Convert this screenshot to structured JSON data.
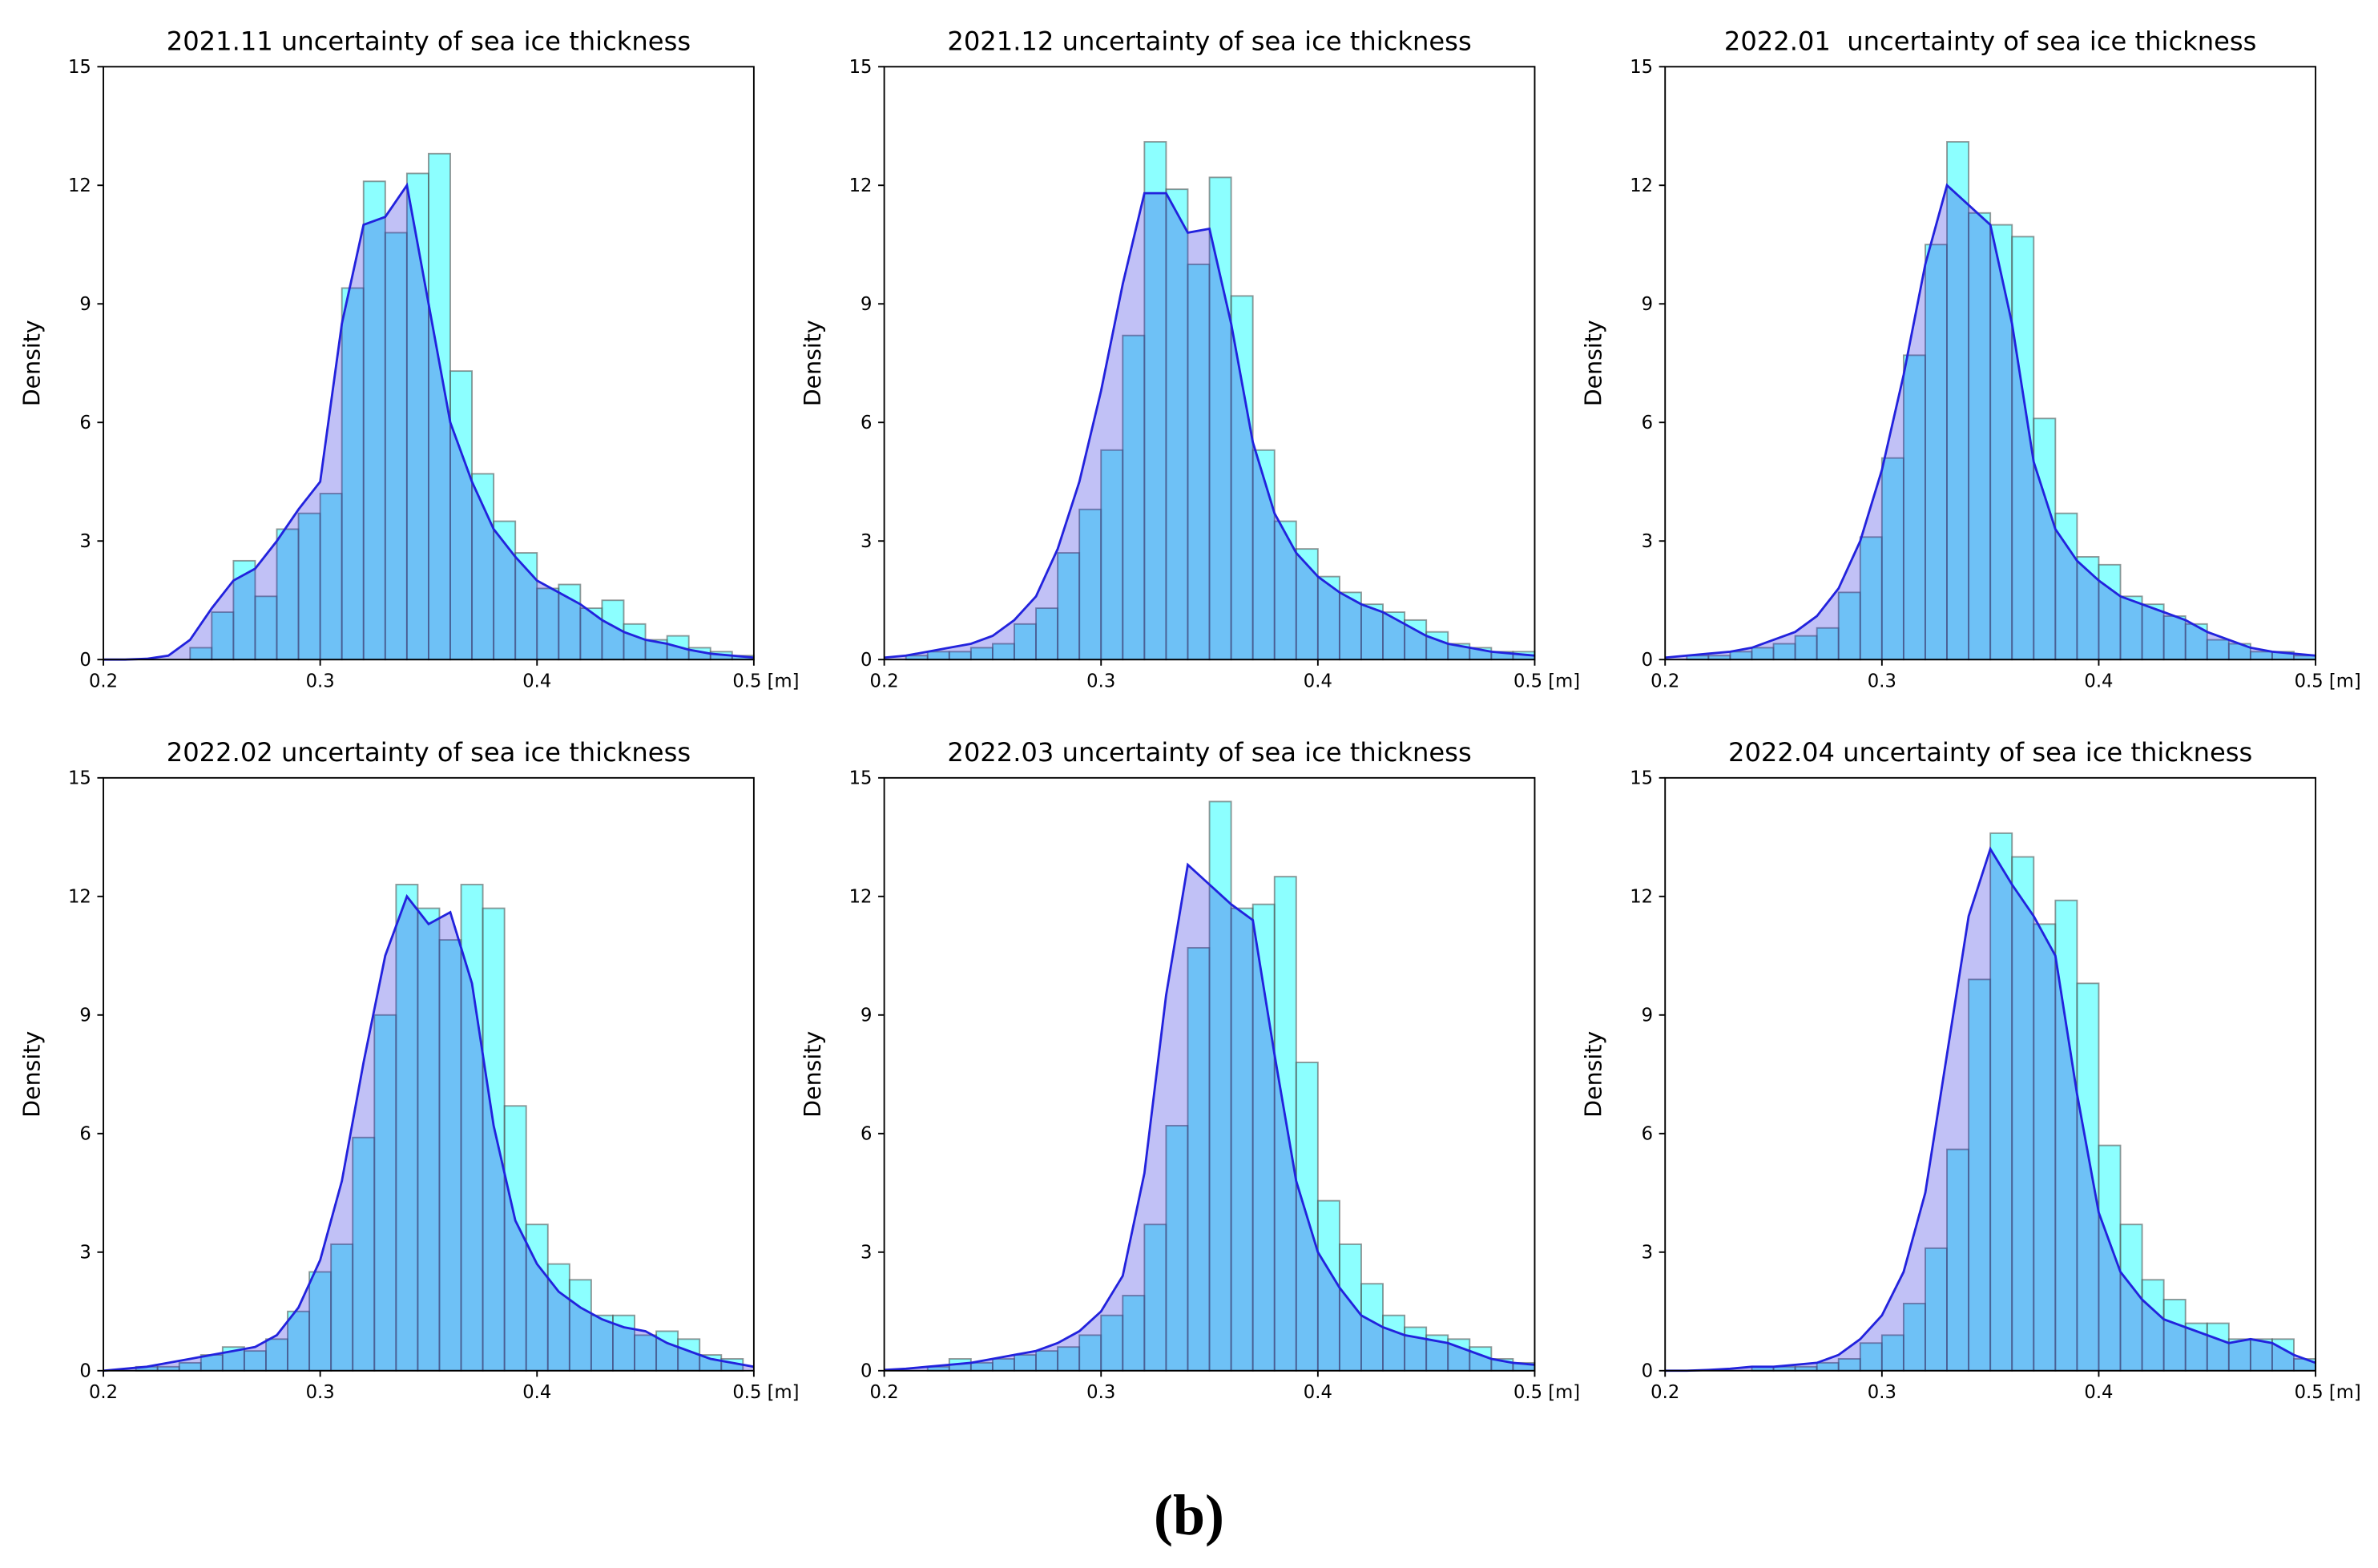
{
  "chart_data": [
    {
      "type": "histogram",
      "title": "2021.11 uncertainty of sea ice thickness",
      "ylabel": "Density",
      "bins": [
        0.24,
        0.25,
        0.26,
        0.27,
        0.28,
        0.29,
        0.3,
        0.31,
        0.32,
        0.33,
        0.34,
        0.35,
        0.36,
        0.37,
        0.38,
        0.39,
        0.4,
        0.41,
        0.42,
        0.43,
        0.44,
        0.45,
        0.46,
        0.47,
        0.48,
        0.49,
        0.5
      ],
      "counts": [
        0.3,
        1.2,
        2.5,
        1.6,
        3.3,
        3.7,
        4.2,
        9.4,
        12.1,
        10.8,
        12.3,
        12.8,
        7.3,
        4.7,
        3.5,
        2.7,
        1.8,
        1.9,
        1.3,
        1.5,
        0.9,
        0.5,
        0.6,
        0.3,
        0.2,
        0.1
      ],
      "kde": {
        "x": [
          0.2,
          0.21,
          0.22,
          0.23,
          0.24,
          0.25,
          0.26,
          0.27,
          0.28,
          0.29,
          0.3,
          0.31,
          0.32,
          0.33,
          0.34,
          0.35,
          0.36,
          0.37,
          0.38,
          0.39,
          0.4,
          0.41,
          0.42,
          0.43,
          0.44,
          0.45,
          0.46,
          0.47,
          0.48,
          0.49,
          0.5
        ],
        "values": [
          0,
          0,
          0.02,
          0.1,
          0.5,
          1.3,
          2.0,
          2.3,
          3.0,
          3.8,
          4.5,
          8.5,
          11,
          11.2,
          12,
          9,
          6,
          4.5,
          3.3,
          2.6,
          2.0,
          1.7,
          1.4,
          1.0,
          0.7,
          0.5,
          0.4,
          0.25,
          0.15,
          0.1,
          0.05
        ]
      },
      "bar_color": "#00ffff",
      "kde_color": "#2222dd",
      "xlim": [
        0.2,
        0.5
      ],
      "xticks": [
        0.2,
        0.3,
        0.4,
        {
          "value": 0.5,
          "label": "0.5 [m]"
        }
      ],
      "ylim": [
        0,
        15
      ],
      "yticks": [
        0,
        3,
        6,
        9,
        12,
        15
      ]
    },
    {
      "type": "histogram",
      "title": "2021.12 uncertainty of sea ice thickness",
      "ylabel": "Density",
      "bins": [
        0.21,
        0.22,
        0.23,
        0.24,
        0.25,
        0.26,
        0.27,
        0.28,
        0.29,
        0.3,
        0.31,
        0.32,
        0.33,
        0.34,
        0.35,
        0.36,
        0.37,
        0.38,
        0.39,
        0.4,
        0.41,
        0.42,
        0.43,
        0.44,
        0.45,
        0.46,
        0.47,
        0.48,
        0.49,
        0.5
      ],
      "counts": [
        0.1,
        0.2,
        0.2,
        0.3,
        0.4,
        0.9,
        1.3,
        2.7,
        3.8,
        5.3,
        8.2,
        13.1,
        11.9,
        10.0,
        12.2,
        9.2,
        5.3,
        3.5,
        2.8,
        2.1,
        1.7,
        1.4,
        1.2,
        1.0,
        0.7,
        0.4,
        0.3,
        0.2,
        0.2
      ],
      "kde": {
        "x": [
          0.2,
          0.21,
          0.22,
          0.23,
          0.24,
          0.25,
          0.26,
          0.27,
          0.28,
          0.29,
          0.3,
          0.31,
          0.32,
          0.33,
          0.34,
          0.35,
          0.36,
          0.37,
          0.38,
          0.39,
          0.4,
          0.41,
          0.42,
          0.43,
          0.44,
          0.45,
          0.46,
          0.47,
          0.48,
          0.49,
          0.5
        ],
        "values": [
          0.05,
          0.1,
          0.2,
          0.3,
          0.4,
          0.6,
          1.0,
          1.6,
          2.8,
          4.5,
          6.8,
          9.5,
          11.8,
          11.8,
          10.8,
          10.9,
          8.5,
          5.5,
          3.7,
          2.7,
          2.1,
          1.7,
          1.4,
          1.2,
          0.9,
          0.6,
          0.4,
          0.3,
          0.2,
          0.15,
          0.1
        ]
      },
      "bar_color": "#00ffff",
      "kde_color": "#2222dd",
      "xlim": [
        0.2,
        0.5
      ],
      "xticks": [
        0.2,
        0.3,
        0.4,
        {
          "value": 0.5,
          "label": "0.5 [m]"
        }
      ],
      "ylim": [
        0,
        15
      ],
      "yticks": [
        0,
        3,
        6,
        9,
        12,
        15
      ]
    },
    {
      "type": "histogram",
      "title": "2022.01  uncertainty of sea ice thickness",
      "ylabel": "Density",
      "bins": [
        0.21,
        0.22,
        0.23,
        0.24,
        0.25,
        0.26,
        0.27,
        0.28,
        0.29,
        0.3,
        0.31,
        0.32,
        0.33,
        0.34,
        0.35,
        0.36,
        0.37,
        0.38,
        0.39,
        0.4,
        0.41,
        0.42,
        0.43,
        0.44,
        0.45,
        0.46,
        0.47,
        0.48,
        0.49,
        0.5
      ],
      "counts": [
        0.1,
        0.1,
        0.2,
        0.3,
        0.4,
        0.6,
        0.8,
        1.7,
        3.1,
        5.1,
        7.7,
        10.5,
        13.1,
        11.3,
        11.0,
        10.7,
        6.1,
        3.7,
        2.6,
        2.4,
        1.6,
        1.4,
        1.1,
        0.9,
        0.5,
        0.4,
        0.2,
        0.2,
        0.1
      ],
      "kde": {
        "x": [
          0.2,
          0.21,
          0.22,
          0.23,
          0.24,
          0.25,
          0.26,
          0.27,
          0.28,
          0.29,
          0.3,
          0.31,
          0.32,
          0.33,
          0.34,
          0.35,
          0.36,
          0.37,
          0.38,
          0.39,
          0.4,
          0.41,
          0.42,
          0.43,
          0.44,
          0.45,
          0.46,
          0.47,
          0.48,
          0.49,
          0.5
        ],
        "values": [
          0.05,
          0.1,
          0.15,
          0.2,
          0.3,
          0.5,
          0.7,
          1.1,
          1.8,
          3.0,
          4.8,
          7.2,
          10.0,
          12.0,
          11.5,
          11.0,
          8.5,
          5.0,
          3.3,
          2.5,
          2.0,
          1.6,
          1.4,
          1.2,
          1.0,
          0.7,
          0.5,
          0.3,
          0.2,
          0.15,
          0.1
        ]
      },
      "bar_color": "#00ffff",
      "kde_color": "#2222dd",
      "xlim": [
        0.2,
        0.5
      ],
      "xticks": [
        0.2,
        0.3,
        0.4,
        {
          "value": 0.5,
          "label": "0.5 [m]"
        }
      ],
      "ylim": [
        0,
        15
      ],
      "yticks": [
        0,
        3,
        6,
        9,
        12,
        15
      ]
    },
    {
      "type": "histogram",
      "title": "2022.02 uncertainty of sea ice thickness",
      "ylabel": "Density",
      "bins": [
        0.215,
        0.225,
        0.235,
        0.245,
        0.255,
        0.265,
        0.275,
        0.285,
        0.295,
        0.305,
        0.315,
        0.325,
        0.335,
        0.345,
        0.355,
        0.365,
        0.375,
        0.385,
        0.395,
        0.405,
        0.415,
        0.425,
        0.435,
        0.445,
        0.455,
        0.465,
        0.475,
        0.485,
        0.495
      ],
      "counts": [
        0.1,
        0.1,
        0.2,
        0.4,
        0.6,
        0.5,
        0.8,
        1.5,
        2.5,
        3.2,
        5.9,
        9.0,
        12.3,
        11.7,
        10.9,
        12.3,
        11.7,
        6.7,
        3.7,
        2.7,
        2.3,
        1.4,
        1.4,
        0.9,
        1.0,
        0.8,
        0.4,
        0.3
      ],
      "kde": {
        "x": [
          0.2,
          0.21,
          0.22,
          0.23,
          0.24,
          0.25,
          0.26,
          0.27,
          0.28,
          0.29,
          0.3,
          0.31,
          0.32,
          0.33,
          0.34,
          0.35,
          0.36,
          0.37,
          0.38,
          0.39,
          0.4,
          0.41,
          0.42,
          0.43,
          0.44,
          0.45,
          0.46,
          0.47,
          0.48,
          0.49,
          0.5
        ],
        "values": [
          0,
          0.05,
          0.1,
          0.2,
          0.3,
          0.4,
          0.5,
          0.6,
          0.9,
          1.6,
          2.8,
          4.8,
          7.8,
          10.5,
          12.0,
          11.3,
          11.6,
          9.8,
          6.2,
          3.8,
          2.7,
          2.0,
          1.6,
          1.3,
          1.1,
          1.0,
          0.7,
          0.5,
          0.3,
          0.2,
          0.1
        ]
      },
      "bar_color": "#00ffff",
      "kde_color": "#2222dd",
      "xlim": [
        0.2,
        0.5
      ],
      "xticks": [
        0.2,
        0.3,
        0.4,
        {
          "value": 0.5,
          "label": "0.5 [m]"
        }
      ],
      "ylim": [
        0,
        15
      ],
      "yticks": [
        0,
        3,
        6,
        9,
        12,
        15
      ]
    },
    {
      "type": "histogram",
      "title": "2022.03 uncertainty of sea ice thickness",
      "ylabel": "Density",
      "bins": [
        0.22,
        0.23,
        0.24,
        0.25,
        0.26,
        0.27,
        0.28,
        0.29,
        0.3,
        0.31,
        0.32,
        0.33,
        0.34,
        0.35,
        0.36,
        0.37,
        0.38,
        0.39,
        0.4,
        0.41,
        0.42,
        0.43,
        0.44,
        0.45,
        0.46,
        0.47,
        0.48,
        0.49,
        0.5
      ],
      "counts": [
        0.1,
        0.3,
        0.2,
        0.3,
        0.4,
        0.5,
        0.6,
        0.9,
        1.4,
        1.9,
        3.7,
        6.2,
        10.7,
        14.4,
        11.7,
        11.8,
        12.5,
        7.8,
        4.3,
        3.2,
        2.2,
        1.4,
        1.1,
        0.9,
        0.8,
        0.6,
        0.3,
        0.2
      ],
      "kde": {
        "x": [
          0.2,
          0.21,
          0.22,
          0.23,
          0.24,
          0.25,
          0.26,
          0.27,
          0.28,
          0.29,
          0.3,
          0.31,
          0.32,
          0.33,
          0.34,
          0.35,
          0.36,
          0.37,
          0.38,
          0.39,
          0.4,
          0.41,
          0.42,
          0.43,
          0.44,
          0.45,
          0.46,
          0.47,
          0.48,
          0.49,
          0.5
        ],
        "values": [
          0.02,
          0.05,
          0.1,
          0.15,
          0.2,
          0.3,
          0.4,
          0.5,
          0.7,
          1.0,
          1.5,
          2.4,
          5.0,
          9.5,
          12.8,
          12.3,
          11.8,
          11.4,
          8.0,
          4.8,
          3.0,
          2.1,
          1.4,
          1.1,
          0.9,
          0.8,
          0.7,
          0.5,
          0.3,
          0.2,
          0.15
        ]
      },
      "bar_color": "#00ffff",
      "kde_color": "#2222dd",
      "xlim": [
        0.2,
        0.5
      ],
      "xticks": [
        0.2,
        0.3,
        0.4,
        {
          "value": 0.5,
          "label": "0.5 [m]"
        }
      ],
      "ylim": [
        0,
        15
      ],
      "yticks": [
        0,
        3,
        6,
        9,
        12,
        15
      ]
    },
    {
      "type": "histogram",
      "title": "2022.04 uncertainty of sea ice thickness",
      "ylabel": "Density",
      "bins": [
        0.24,
        0.25,
        0.26,
        0.27,
        0.28,
        0.29,
        0.3,
        0.31,
        0.32,
        0.33,
        0.34,
        0.35,
        0.36,
        0.37,
        0.38,
        0.39,
        0.4,
        0.41,
        0.42,
        0.43,
        0.44,
        0.45,
        0.46,
        0.47,
        0.48,
        0.49,
        0.5
      ],
      "counts": [
        0.1,
        0.1,
        0.1,
        0.2,
        0.3,
        0.7,
        0.9,
        1.7,
        3.1,
        5.6,
        9.9,
        13.6,
        13.0,
        11.3,
        11.9,
        9.8,
        5.7,
        3.7,
        2.3,
        1.8,
        1.2,
        1.2,
        0.8,
        0.8,
        0.8,
        0.3
      ],
      "kde": {
        "x": [
          0.2,
          0.21,
          0.22,
          0.23,
          0.24,
          0.25,
          0.26,
          0.27,
          0.28,
          0.29,
          0.3,
          0.31,
          0.32,
          0.33,
          0.34,
          0.35,
          0.36,
          0.37,
          0.38,
          0.39,
          0.4,
          0.41,
          0.42,
          0.43,
          0.44,
          0.45,
          0.46,
          0.47,
          0.48,
          0.49,
          0.5
        ],
        "values": [
          0,
          0,
          0.02,
          0.05,
          0.1,
          0.1,
          0.15,
          0.2,
          0.4,
          0.8,
          1.4,
          2.5,
          4.5,
          8.0,
          11.5,
          13.2,
          12.3,
          11.5,
          10.5,
          7.0,
          4.0,
          2.5,
          1.8,
          1.3,
          1.1,
          0.9,
          0.7,
          0.8,
          0.7,
          0.4,
          0.2
        ]
      },
      "bar_color": "#00ffff",
      "kde_color": "#2222dd",
      "xlim": [
        0.2,
        0.5
      ],
      "xticks": [
        0.2,
        0.3,
        0.4,
        {
          "value": 0.5,
          "label": "0.5 [m]"
        }
      ],
      "ylim": [
        0,
        15
      ],
      "yticks": [
        0,
        3,
        6,
        9,
        12,
        15
      ]
    }
  ],
  "caption": "(b)"
}
